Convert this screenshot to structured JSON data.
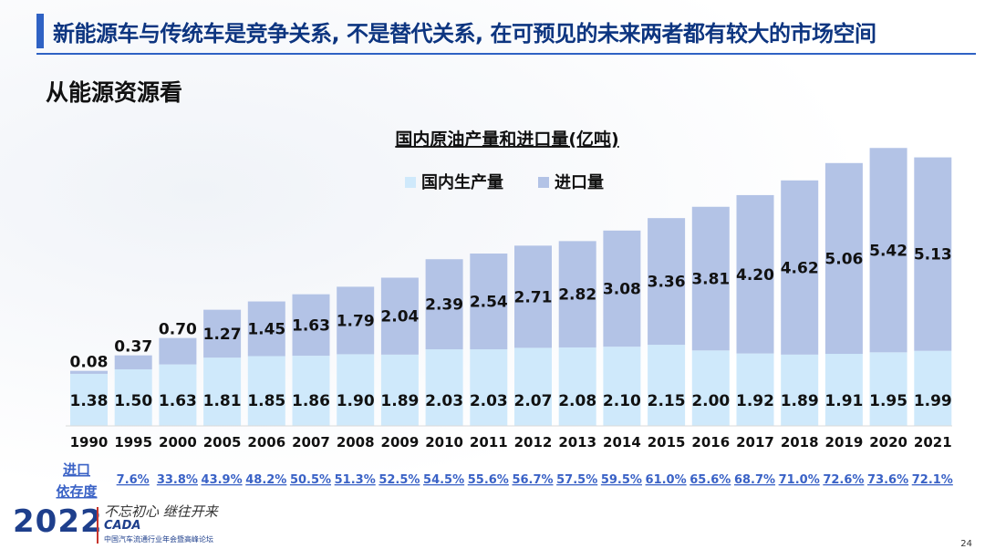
{
  "header": {
    "title": "新能源车与传统车是竞争关系, 不是替代关系, 在可预见的未来两者都有较大的市场空间",
    "subtitle": "从能源资源看"
  },
  "colors": {
    "domestic": "#cfe9fb",
    "imported": "#b3c3e6",
    "title_blue": "#0d3580",
    "dependency_blue": "#3a62c6"
  },
  "chart_data": {
    "type": "bar",
    "stacked": true,
    "title": "国内原油产量和进口量(亿吨)",
    "legend_position": "top",
    "categories": [
      "1990",
      "1995",
      "2000",
      "2005",
      "2006",
      "2007",
      "2008",
      "2009",
      "2010",
      "2011",
      "2012",
      "2013",
      "2014",
      "2015",
      "2016",
      "2017",
      "2018",
      "2019",
      "2020",
      "2021"
    ],
    "series": [
      {
        "name": "国内生产量",
        "values": [
          1.38,
          1.5,
          1.63,
          1.81,
          1.85,
          1.86,
          1.9,
          1.89,
          2.03,
          2.03,
          2.07,
          2.08,
          2.1,
          2.15,
          2.0,
          1.92,
          1.89,
          1.91,
          1.95,
          1.99
        ]
      },
      {
        "name": "进口量",
        "values": [
          0.08,
          0.37,
          0.7,
          1.27,
          1.45,
          1.63,
          1.79,
          2.04,
          2.39,
          2.54,
          2.71,
          2.82,
          3.08,
          3.36,
          3.81,
          4.2,
          4.62,
          5.06,
          5.42,
          5.13
        ]
      }
    ],
    "ylim": [
      0,
      7.4
    ],
    "grid": false,
    "dependency_label": [
      "进口",
      "依存度"
    ],
    "dependency": [
      "7.6%",
      "33.8%",
      "43.9%",
      "48.2%",
      "50.5%",
      "51.3%",
      "52.5%",
      "54.5%",
      "55.6%",
      "56.7%",
      "57.5%",
      "59.5%",
      "61.0%",
      "65.6%",
      "68.7%",
      "71.0%",
      "72.6%",
      "73.6%",
      "72.1%"
    ]
  },
  "footer": {
    "year": "2022",
    "slogan": "不忘初心 继往开来",
    "brand": "CADA",
    "forum": "中国汽车流通行业年会暨高峰论坛"
  },
  "page_number": "24"
}
